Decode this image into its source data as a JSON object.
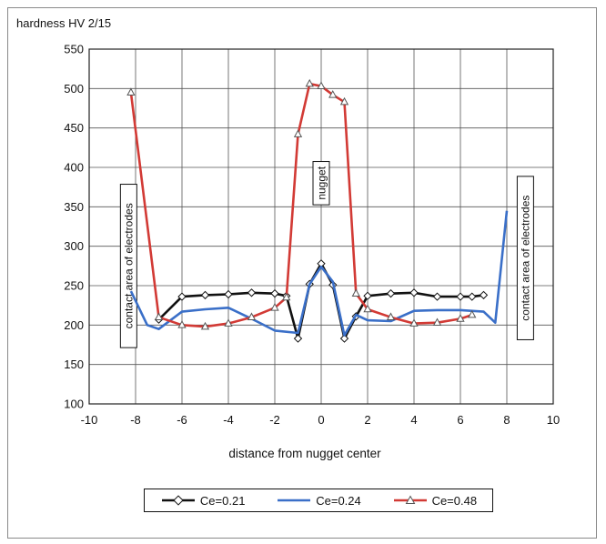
{
  "chart_data": {
    "type": "line",
    "ylabel": "hardness HV 2/15",
    "xlabel": "distance from nugget center",
    "xlim": [
      -10,
      10
    ],
    "ylim": [
      100,
      550
    ],
    "x_ticks": [
      -10,
      -8,
      -6,
      -4,
      -2,
      0,
      2,
      4,
      6,
      8,
      10
    ],
    "y_ticks": [
      100,
      150,
      200,
      250,
      300,
      350,
      400,
      450,
      500,
      550
    ],
    "grid": true,
    "legend_position": "bottom",
    "annotations": [
      {
        "text": "contact area of electrodes",
        "x": -8.3,
        "y": 275
      },
      {
        "text": "nugget",
        "x": 0,
        "y": 380
      },
      {
        "text": "contact area of electrodes",
        "x": 8.8,
        "y": 285
      }
    ],
    "series": [
      {
        "name": "Ce=0.21",
        "color": "#111111",
        "marker": "diamond",
        "x": [
          -7,
          -6,
          -5,
          -4,
          -3,
          -2,
          -1.5,
          -1,
          -0.5,
          0,
          0.5,
          1,
          1.5,
          2,
          3,
          4,
          5,
          6,
          6.5,
          7
        ],
        "y": [
          207,
          236,
          238,
          239,
          241,
          240,
          237,
          183,
          252,
          278,
          251,
          183,
          211,
          237,
          240,
          241,
          236,
          236,
          236,
          238
        ]
      },
      {
        "name": "Ce=0.24",
        "color": "#3a6fc8",
        "marker": "none",
        "x": [
          -8.2,
          -7.5,
          -7,
          -6,
          -5,
          -4,
          -3,
          -2,
          -1,
          -0.5,
          0,
          0.5,
          1,
          1.5,
          2,
          3,
          4,
          5,
          6,
          7,
          7.5,
          8
        ],
        "y": [
          243,
          200,
          195,
          217,
          220,
          222,
          208,
          193,
          190,
          252,
          274,
          255,
          187,
          213,
          206,
          205,
          218,
          219,
          219,
          217,
          203,
          345
        ]
      },
      {
        "name": "Ce=0.48",
        "color": "#d23a35",
        "marker": "triangle",
        "x": [
          -8.2,
          -7,
          -6,
          -5,
          -4,
          -3,
          -2,
          -1.5,
          -1,
          -0.5,
          0,
          0.5,
          1,
          1.5,
          2,
          3,
          4,
          5,
          6,
          6.5
        ],
        "y": [
          495,
          210,
          200,
          198,
          202,
          210,
          222,
          235,
          442,
          506,
          503,
          492,
          483,
          240,
          220,
          210,
          202,
          203,
          208,
          213
        ]
      }
    ]
  }
}
